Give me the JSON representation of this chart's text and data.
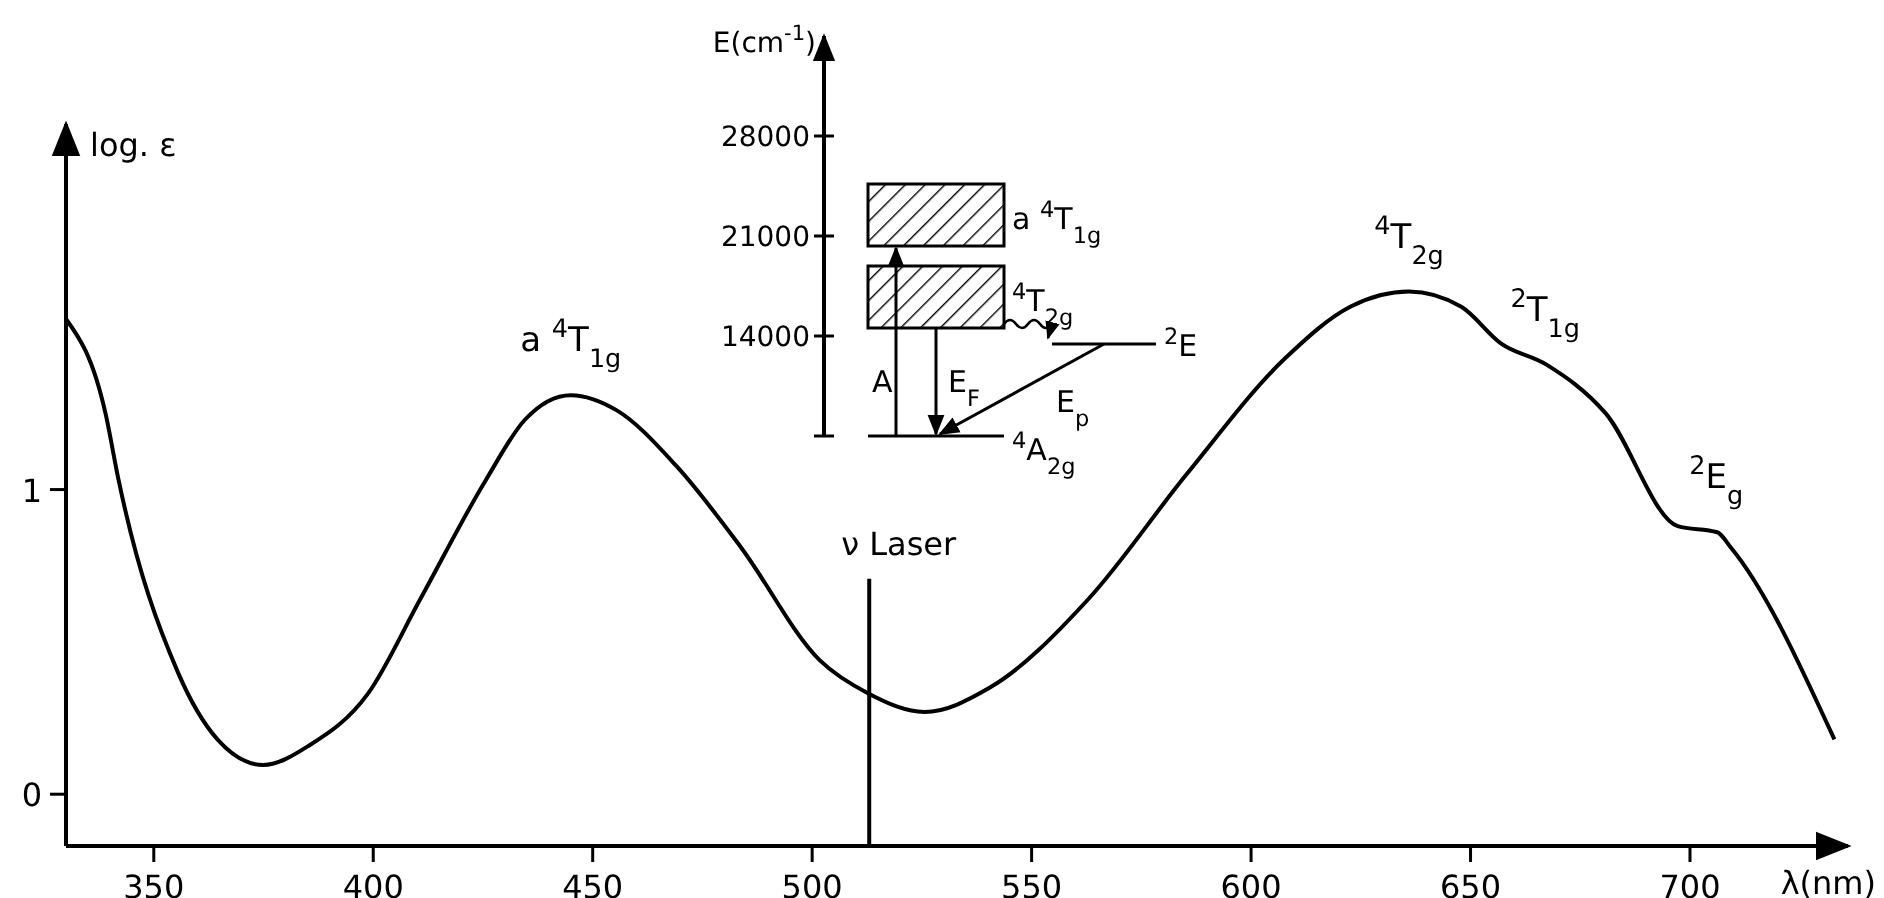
{
  "chart_data": [
    {
      "type": "line",
      "xlabel": "λ(nm)",
      "ylabel": "log. ε",
      "xlim": [
        330,
        736
      ],
      "ylim": [
        -0.17,
        2.2
      ],
      "xticks": [
        350,
        400,
        450,
        500,
        550,
        600,
        650,
        700
      ],
      "yticks": [
        0,
        1
      ],
      "series": [
        {
          "color": "#000000",
          "x": [
            330,
            339,
            342,
            355.5,
            364.5,
            374.9,
            385.4,
            398.8,
            410.7,
            425.6,
            434.6,
            445,
            455.5,
            468.9,
            483.8,
            501.7,
            512.9,
            525.6,
            540.5,
            562.9,
            585.3,
            607.7,
            622.6,
            636,
            647.9,
            656.9,
            667.3,
            680.8,
            697.2,
            706.2,
            709.3,
            732.9
          ],
          "values": [
            1.56,
            1.25,
            1.03,
            0.4,
            0.18,
            0.096,
            0.16,
            0.33,
            0.64,
            1.03,
            1.23,
            1.31,
            1.26,
            1.08,
            0.81,
            0.44,
            0.33,
            0.27,
            0.35,
            0.64,
            1.05,
            1.43,
            1.6,
            1.65,
            1.6,
            1.48,
            1.41,
            1.25,
            0.88,
            0.86,
            0.81,
            0.18
          ]
        }
      ],
      "ref_lines": [
        {
          "axis": "x",
          "value": 513,
          "label": "ν Laser"
        }
      ],
      "annotations": [
        {
          "text": "a $^{4}$T$_{1g}$",
          "x": 445,
          "y": 1.31
        },
        {
          "text": "$^{4}$T$_{2g}$",
          "x": 636,
          "y": 1.65
        },
        {
          "text": "$^{2}$T$_{1g}$",
          "x": 667,
          "y": 1.41
        },
        {
          "text": "$^{2}$E$_{g}$",
          "x": 706,
          "y": 0.86
        }
      ]
    },
    {
      "type": "other",
      "ylabel": "E(cm$^{-1}$)",
      "annotations": [
        "28000",
        "21000",
        "14000",
        "a $^{4}$T$_{1g}$",
        "$^{4}$T$_{2g}$",
        "$^{2}$E",
        "$^{4}$A$_{2g}$",
        "A",
        "E$_{F}$",
        "E$_{p}$"
      ]
    }
  ]
}
